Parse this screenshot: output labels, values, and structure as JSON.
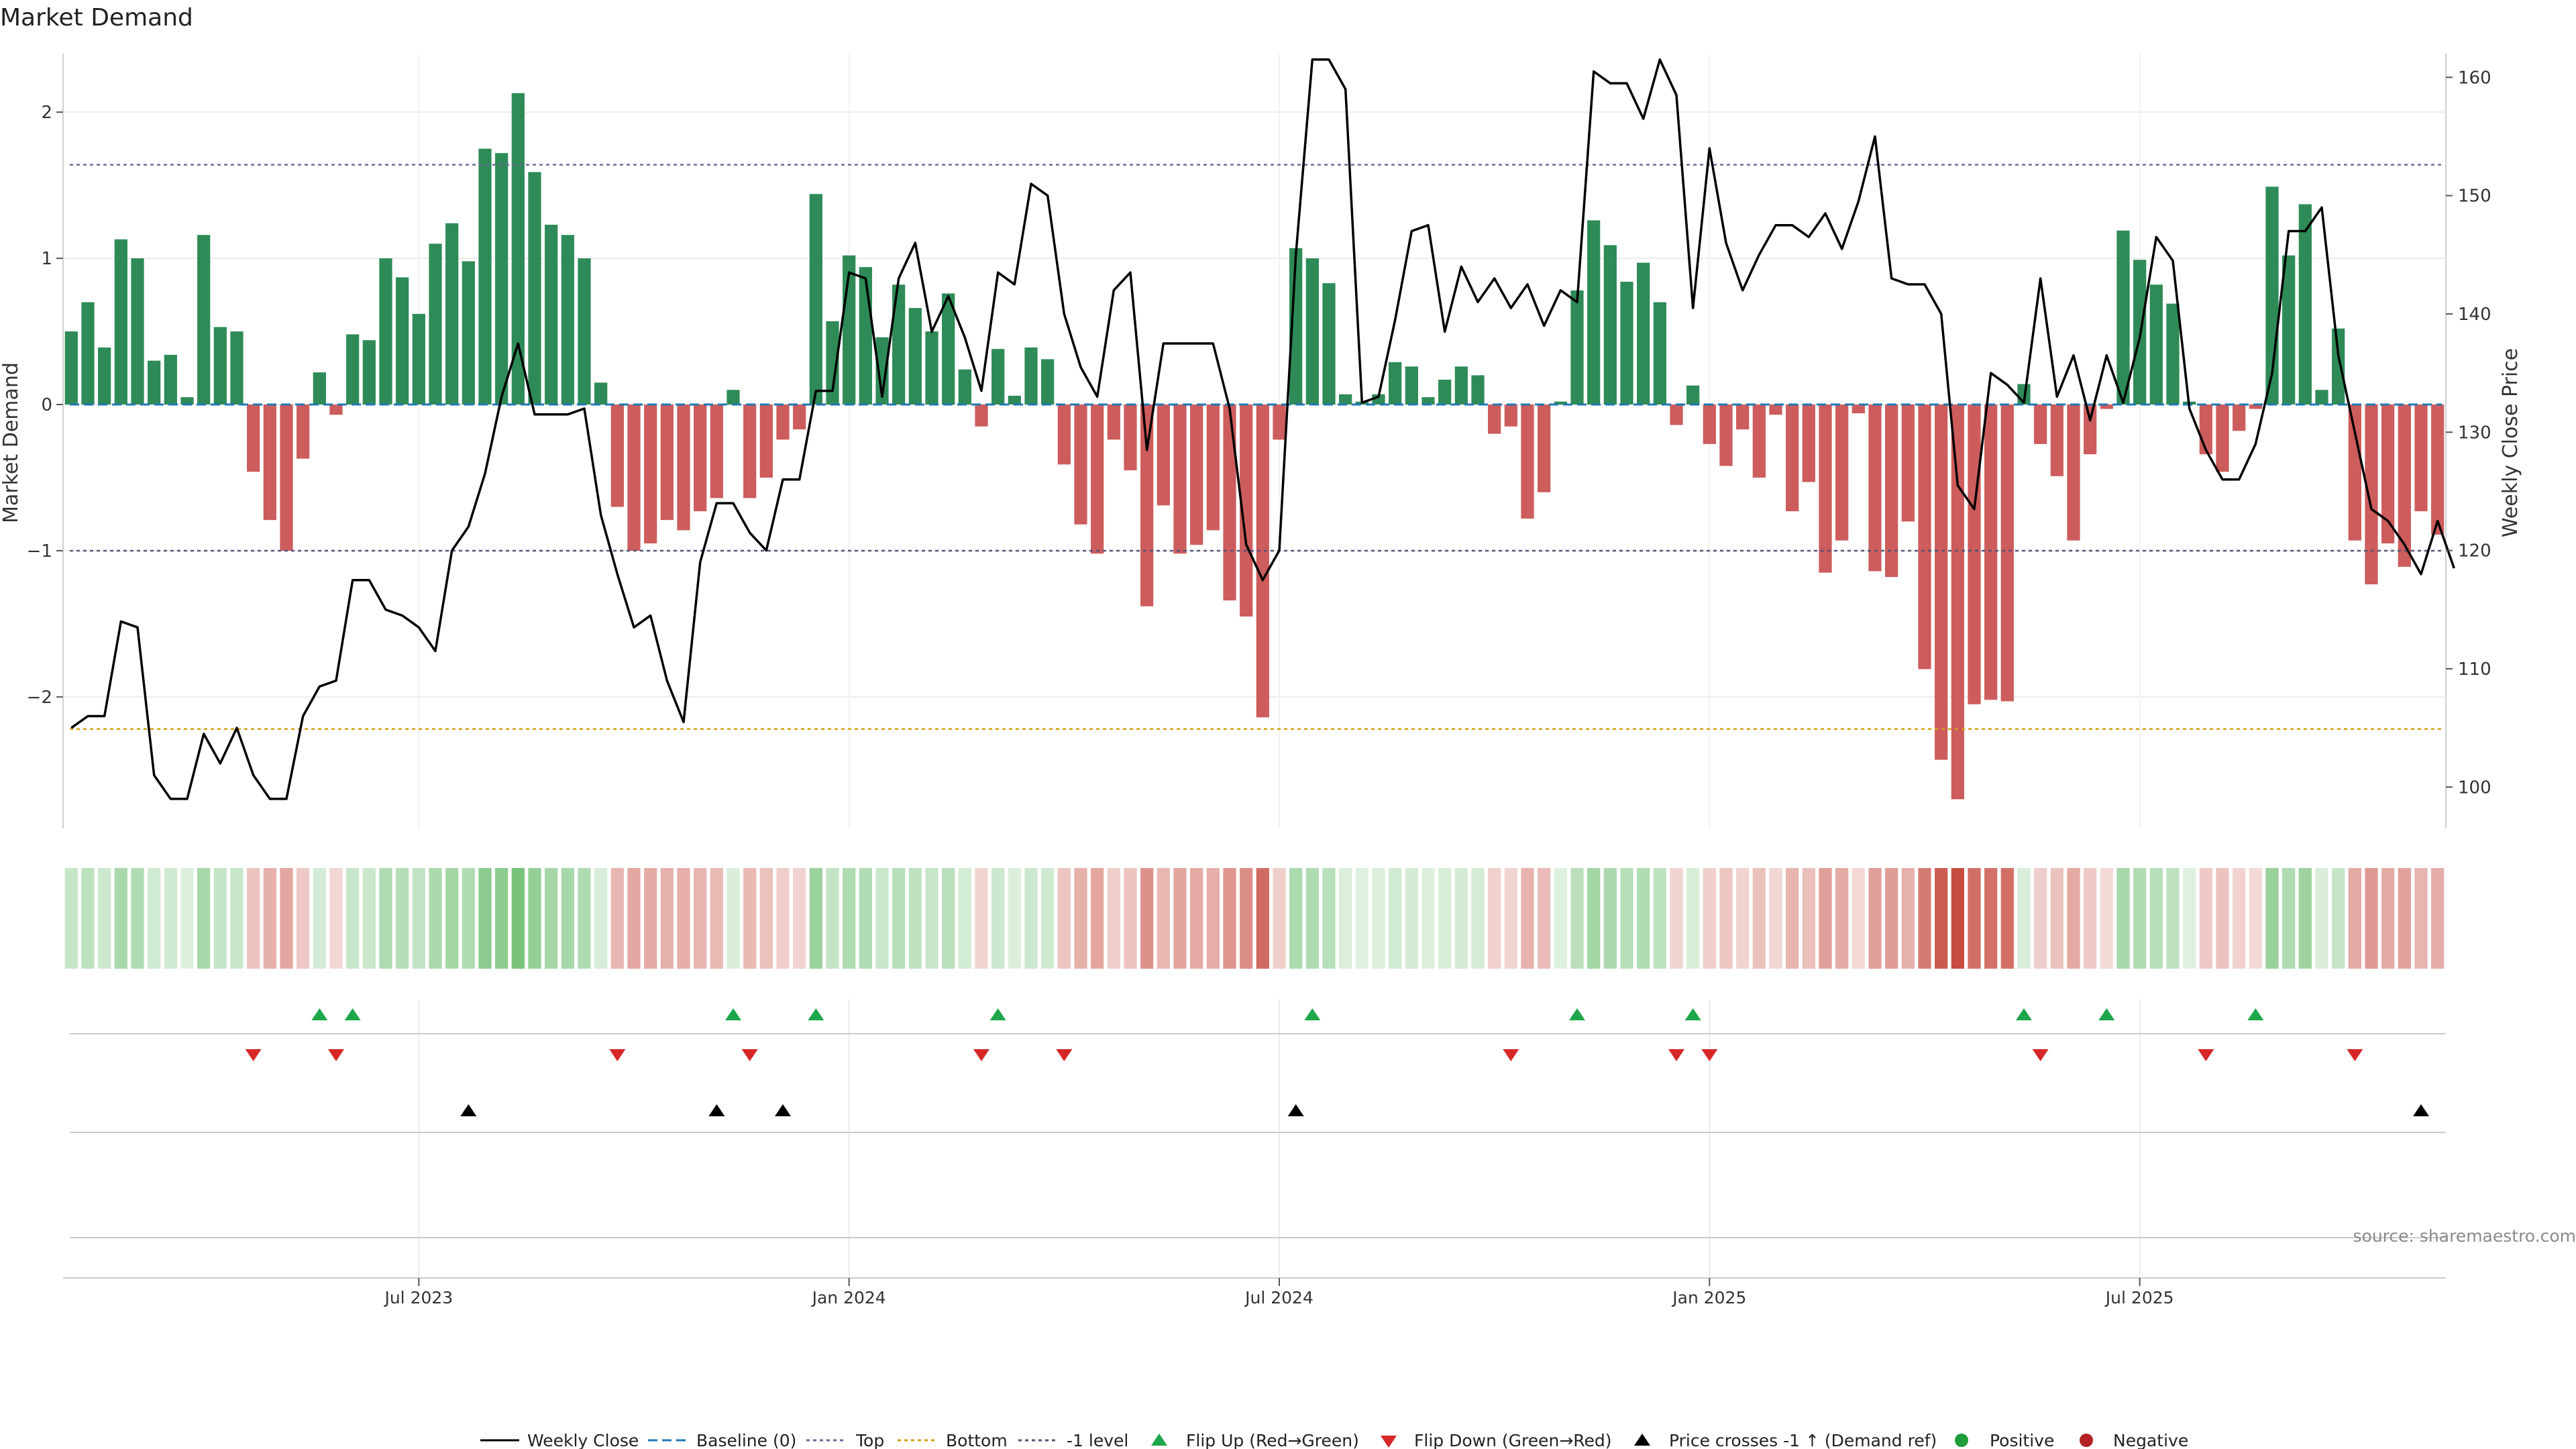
{
  "chart_data": {
    "type": "bar",
    "title": "Market Demand",
    "ylabel_left": "Market Demand",
    "ylabel_right": "Weekly Close Price",
    "left_ylim": [
      -2.9,
      2.4
    ],
    "left_ticks": [
      {
        "v": 2,
        "label": "2"
      },
      {
        "v": 1,
        "label": "1"
      },
      {
        "v": 0,
        "label": "0"
      },
      {
        "v": -1,
        "label": "−1"
      },
      {
        "v": -2,
        "label": "−2"
      }
    ],
    "right_ylim": [
      96.5,
      162
    ],
    "right_ticks": [
      {
        "v": 160,
        "label": "160"
      },
      {
        "v": 150,
        "label": "150"
      },
      {
        "v": 140,
        "label": "140"
      },
      {
        "v": 130,
        "label": "130"
      },
      {
        "v": 120,
        "label": "120"
      },
      {
        "v": 110,
        "label": "110"
      },
      {
        "v": 100,
        "label": "100"
      }
    ],
    "reference_lines": {
      "top": 1.64,
      "bottom": -2.22,
      "minus_one": -1,
      "baseline": 0
    },
    "x_tick_labels": [
      {
        "i": 21,
        "label": "Jul 2023"
      },
      {
        "i": 47,
        "label": "Jan 2024"
      },
      {
        "i": 73,
        "label": "Jul 2024"
      },
      {
        "i": 99,
        "label": "Jan 2025"
      },
      {
        "i": 125,
        "label": "Jul 2025"
      }
    ],
    "demand": [
      0.5,
      0.7,
      0.39,
      1.13,
      1.0,
      0.3,
      0.34,
      0.05,
      1.16,
      0.53,
      0.5,
      -0.46,
      -0.79,
      -1.0,
      -0.37,
      0.22,
      -0.07,
      0.48,
      0.44,
      1.0,
      0.87,
      0.62,
      1.1,
      1.24,
      0.98,
      1.75,
      1.72,
      2.13,
      1.59,
      1.23,
      1.16,
      1.0,
      0.15,
      -0.7,
      -1.0,
      -0.95,
      -0.79,
      -0.86,
      -0.73,
      -0.64,
      0.1,
      -0.64,
      -0.5,
      -0.24,
      -0.17,
      1.44,
      0.57,
      1.02,
      0.94,
      0.46,
      0.82,
      0.66,
      0.5,
      0.76,
      0.24,
      -0.15,
      0.38,
      0.06,
      0.39,
      0.31,
      -0.41,
      -0.82,
      -1.02,
      -0.24,
      -0.45,
      -1.38,
      -0.69,
      -1.02,
      -0.96,
      -0.86,
      -1.34,
      -1.45,
      -2.14,
      -0.24,
      1.07,
      1.0,
      0.83,
      0.07,
      0.02,
      0.07,
      0.29,
      0.26,
      0.05,
      0.17,
      0.26,
      0.2,
      -0.2,
      -0.15,
      -0.78,
      -0.6,
      0.02,
      0.78,
      1.26,
      1.09,
      0.84,
      0.97,
      0.7,
      -0.14,
      0.13,
      -0.27,
      -0.42,
      -0.17,
      -0.5,
      -0.07,
      -0.73,
      -0.53,
      -1.15,
      -0.93,
      -0.06,
      -1.14,
      -1.18,
      -0.8,
      -1.81,
      -2.43,
      -2.7,
      -2.05,
      -2.02,
      -2.03,
      0.14,
      -0.27,
      -0.49,
      -0.93,
      -0.34,
      -0.03,
      1.19,
      0.99,
      0.82,
      0.69,
      0.02,
      -0.34,
      -0.46,
      -0.18,
      -0.03,
      1.49,
      1.02,
      1.37,
      0.1,
      0.52,
      -0.93,
      -1.23,
      -0.95,
      -1.11,
      -0.73,
      -0.89
    ],
    "weekly_close": [
      105,
      106,
      106,
      114,
      113.5,
      101,
      99,
      99,
      104.5,
      102,
      105,
      101,
      99,
      99,
      106,
      108.5,
      109,
      117.5,
      117.5,
      115,
      114.5,
      113.5,
      111.5,
      120,
      122,
      126.5,
      133,
      137.5,
      131.5,
      131.5,
      131.5,
      132,
      123,
      118,
      113.5,
      114.5,
      109,
      105.5,
      119,
      124,
      124,
      121.5,
      120,
      126,
      126,
      133.5,
      133.5,
      143.5,
      143,
      133,
      143,
      146,
      138.5,
      141.5,
      138,
      133.5,
      143.5,
      142.5,
      151,
      150,
      140,
      135.5,
      133,
      142,
      143.5,
      128.5,
      137.5,
      137.5,
      137.5,
      137.5,
      132,
      120.5,
      117.5,
      120,
      145,
      161.5,
      161.5,
      159,
      132.5,
      133,
      139.5,
      147,
      147.5,
      138.5,
      144,
      141,
      143,
      140.5,
      142.5,
      139,
      142,
      141,
      160.5,
      159.5,
      159.5,
      156.5,
      161.5,
      158.5,
      140.5,
      154,
      146,
      142,
      145,
      147.5,
      147.5,
      146.5,
      148.5,
      145.5,
      149.5,
      155,
      143,
      142.5,
      142.5,
      140,
      125.5,
      123.5,
      135,
      134,
      132.5,
      143,
      133,
      136.5,
      131,
      136.5,
      132.5,
      138,
      146.5,
      144.5,
      132,
      128.5,
      126,
      126,
      129,
      135,
      147,
      147,
      149,
      136.5,
      130,
      123.5,
      122.5,
      120.5,
      118,
      122.5,
      118.5
    ],
    "flip_up_indices": [
      15,
      17,
      40,
      45,
      56,
      75,
      91,
      98,
      118,
      123,
      132
    ],
    "flip_down_indices": [
      11,
      16,
      33,
      41,
      55,
      60,
      87,
      97,
      99,
      119,
      129,
      138
    ],
    "price_cross_indices": [
      24,
      39,
      43,
      74,
      142
    ],
    "legend": [
      "Weekly Close",
      "Baseline (0)",
      "Top",
      "Bottom",
      "-1 level",
      "Flip Up (Red→Green)",
      "Flip Down (Green→Red)",
      "Price crosses -1 ↑ (Demand ref)",
      "Positive",
      "Negative"
    ],
    "source": "source: sharemaestro.com",
    "colors": {
      "positive": "#2e8b57",
      "negative": "#cd5c5c",
      "top": "#6a6a9a",
      "bottom": "#d4a017",
      "minus_one": "#555577",
      "baseline": "#1f77b4",
      "flip_up": "#1ea64a",
      "flip_down": "#d62728",
      "cross": "#000000",
      "legend_positive": "#1e9e3a",
      "legend_negative": "#b22222"
    }
  }
}
